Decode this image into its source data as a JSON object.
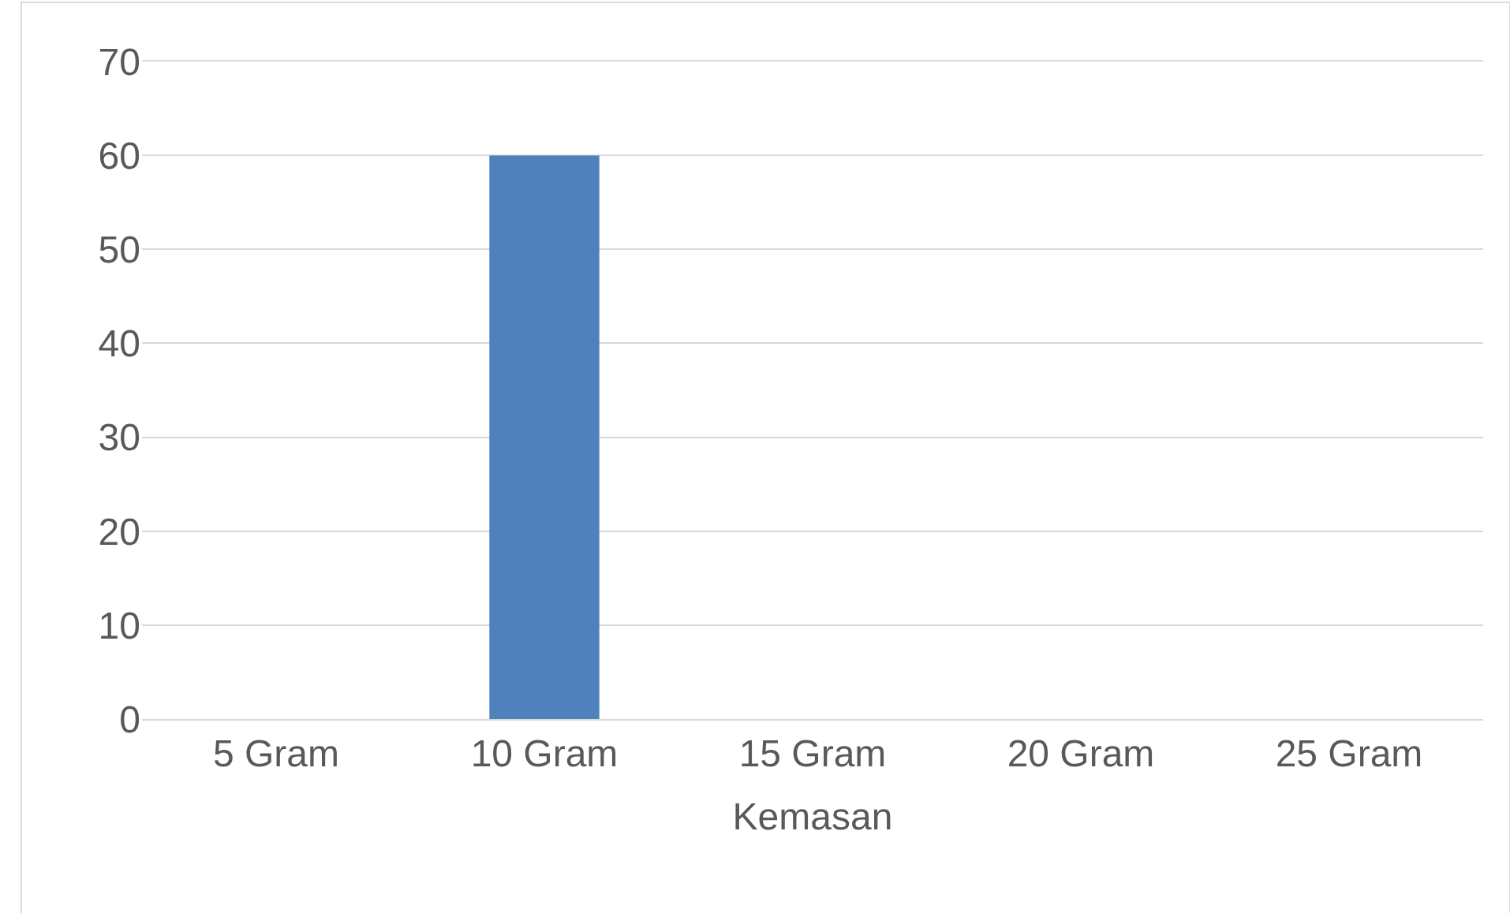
{
  "chart_data": {
    "type": "bar",
    "xlabel": "Kemasan",
    "categories": [
      "5 Gram",
      "10 Gram",
      "15 Gram",
      "20 Gram",
      "25 Gram"
    ],
    "values": [
      0,
      60,
      0,
      0,
      0
    ],
    "color": "#4f81bd",
    "ylim": [
      0,
      70
    ],
    "yticks": [
      0,
      10,
      20,
      30,
      40,
      50,
      60,
      70
    ],
    "grid": "y"
  }
}
